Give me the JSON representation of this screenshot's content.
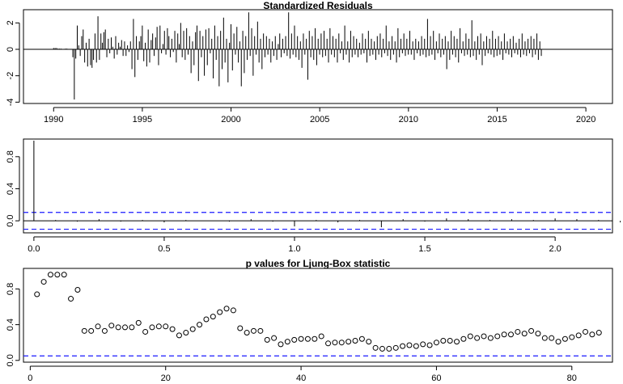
{
  "chart_data": [
    {
      "type": "bar",
      "title": "Standardized Residuals",
      "xlim": [
        1988.3,
        2021.5
      ],
      "ylim": [
        -4.1,
        3.0
      ],
      "xticks": [
        1990,
        1995,
        2000,
        2005,
        2010,
        2015,
        2020
      ],
      "yticks": [
        -4,
        -2,
        0,
        2
      ],
      "x_start": 1990,
      "x_step": 0.0833,
      "values": [
        0.1,
        0.1,
        0.1,
        0.05,
        0.05,
        0.05,
        0.0,
        0.0,
        0.05,
        0.05,
        0.0,
        0.0,
        0.0,
        -0.6,
        -3.8,
        -0.7,
        1.8,
        0.3,
        -0.5,
        1.0,
        1.5,
        -1.0,
        0.5,
        -1.3,
        0.8,
        -1.2,
        -1.4,
        -0.8,
        1.2,
        -1.0,
        2.5,
        -0.8,
        1.2,
        0.5,
        1.3,
        1.5,
        -0.6,
        0.8,
        -0.3,
        0.9,
        0.2,
        -0.7,
        1.0,
        -0.4,
        0.5,
        0.2,
        0.7,
        -0.5,
        0.6,
        -0.5,
        0.3,
        -0.2,
        0.6,
        -1.5,
        2.3,
        -2.1,
        1.0,
        -0.8,
        0.6,
        1.0,
        1.8,
        -0.9,
        0.5,
        -1.3,
        1.5,
        -1.0,
        0.7,
        1.2,
        -0.5,
        0.9,
        1.7,
        -1.2,
        1.8,
        -0.3,
        0.4,
        1.4,
        -0.4,
        1.6,
        1.0,
        -0.6,
        0.8,
        -0.2,
        1.4,
        -1.0,
        1.2,
        0.4,
        2.0,
        -0.6,
        1.4,
        -0.8,
        1.6,
        -0.4,
        1.0,
        -1.8,
        0.6,
        -1.2,
        1.3,
        1.8,
        -2.4,
        1.4,
        -0.6,
        1.0,
        -2.0,
        1.5,
        -1.2,
        1.6,
        -0.3,
        0.8,
        -2.2,
        1.8,
        -0.8,
        1.0,
        -2.8,
        1.4,
        -1.5,
        2.4,
        -1.0,
        0.8,
        -2.5,
        0.5,
        1.9,
        -1.6,
        1.2,
        -0.4,
        1.7,
        -1.0,
        0.6,
        -2.8,
        1.4,
        -1.8,
        1.0,
        -0.8,
        2.8,
        -0.5,
        1.6,
        -2.0,
        1.0,
        -0.4,
        2.1,
        -1.0,
        0.8,
        -1.5,
        1.2,
        -0.6,
        1.0,
        -0.4,
        0.8,
        -1.0,
        0.6,
        -0.5,
        1.0,
        -0.8,
        0.4,
        1.2,
        -0.6,
        0.8,
        -0.3,
        1.0,
        -0.5,
        2.8,
        -0.7,
        1.2,
        -0.4,
        1.8,
        -0.6,
        1.0,
        -0.8,
        0.6,
        -1.4,
        1.2,
        -0.4,
        0.8,
        -2.3,
        1.4,
        -0.6,
        1.0,
        -0.8,
        1.6,
        -1.2,
        0.8,
        -0.4,
        1.2,
        -0.6,
        1.4,
        -0.5,
        0.8,
        -1.0,
        1.6,
        -0.4,
        1.0,
        -0.6,
        0.8,
        -1.0,
        1.2,
        -0.3,
        0.6,
        -0.8,
        1.8,
        -0.4,
        0.6,
        -1.0,
        1.4,
        -0.6,
        1.0,
        -0.4,
        0.8,
        -0.6,
        0.5,
        -0.4,
        1.2,
        -0.3,
        0.8,
        -1.0,
        1.4,
        -0.5,
        0.8,
        -0.4,
        0.6,
        -0.8,
        1.0,
        -0.4,
        1.2,
        -0.6,
        0.8,
        -0.3,
        1.8,
        -0.5,
        0.6,
        -0.8,
        1.0,
        -0.4,
        0.6,
        -1.0,
        1.6,
        -0.6,
        0.8,
        -0.3,
        1.2,
        -0.5,
        0.8,
        -0.4,
        1.4,
        -0.4,
        0.6,
        -0.8,
        0.8,
        -0.3,
        0.6,
        -0.5,
        1.0,
        -0.4,
        0.8,
        -0.6,
        2.3,
        -0.5,
        1.0,
        -0.4,
        1.4,
        -0.8,
        0.6,
        -0.3,
        1.2,
        -0.6,
        0.8,
        -0.4,
        1.0,
        -1.5,
        0.6,
        -0.8,
        1.4,
        -0.4,
        1.0,
        -0.6,
        0.8,
        -1.0,
        1.6,
        -0.3,
        0.6,
        -0.5,
        1.2,
        -0.4,
        0.8,
        -0.6,
        2.2,
        -0.5,
        0.6,
        -0.8,
        1.0,
        -0.4,
        1.2,
        -1.2,
        0.6,
        -0.5,
        1.0,
        -0.3,
        0.8,
        -0.4,
        1.4,
        -0.6,
        0.8,
        -0.5,
        1.0,
        -0.4,
        0.6,
        -0.8,
        1.2,
        -0.3,
        0.6,
        -0.4,
        0.8,
        -0.6,
        1.0,
        -0.3,
        0.5,
        -0.4,
        0.8,
        -0.6,
        1.2,
        -0.4,
        0.6,
        -0.5,
        0.8,
        -0.3,
        1.0,
        -0.6,
        0.8,
        -0.4,
        1.2,
        -0.8,
        0.6,
        -0.5
      ]
    },
    {
      "type": "bar",
      "title": "",
      "xlim": [
        -0.04,
        2.22
      ],
      "ylim": [
        -0.15,
        1.02
      ],
      "xticks": [
        0.0,
        0.5,
        1.0,
        1.5,
        2.0
      ],
      "xticklabels": [
        "0.0",
        "0.5",
        "1.0",
        "1.5",
        "2.0"
      ],
      "yticks": [
        0.0,
        0.4,
        0.8
      ],
      "yticklabels": [
        "0.0",
        "0.4",
        "0.8"
      ],
      "ci": 0.105,
      "lag_step": 0.08333,
      "values": [
        1.0,
        0.01,
        -0.01,
        0.02,
        -0.01,
        0.01,
        -0.02,
        0.01,
        0.0,
        -0.01,
        0.02,
        -0.01,
        -0.07,
        0.01,
        -0.02,
        0.01,
        -0.08,
        0.02,
        -0.01,
        0.03,
        0.02,
        0.01,
        0.02,
        0.01,
        0.03,
        0.02,
        0.01,
        -0.02,
        0.01,
        -0.02,
        0.02,
        0.01,
        0.03,
        0.02,
        -0.07,
        0.01,
        -0.02,
        0.01,
        0.03,
        0.01,
        -0.01,
        0.02,
        -0.01,
        -0.03,
        0.01,
        -0.02,
        0.01,
        0.02,
        0.0,
        -0.01,
        0.01,
        -0.01,
        0.0
      ]
    },
    {
      "type": "scatter",
      "title": "p values for Ljung-Box statistic",
      "xlim": [
        -1,
        86
      ],
      "ylim": [
        -0.02,
        1.03
      ],
      "xticks": [
        0,
        20,
        40,
        60,
        80
      ],
      "yticks": [
        0.0,
        0.4,
        0.8
      ],
      "yticklabels": [
        "0.0",
        "0.4",
        "0.8"
      ],
      "ci": 0.05,
      "x_start": 1,
      "values": [
        0.74,
        0.88,
        0.96,
        0.96,
        0.96,
        0.69,
        0.79,
        0.33,
        0.33,
        0.38,
        0.33,
        0.39,
        0.37,
        0.37,
        0.37,
        0.42,
        0.32,
        0.37,
        0.38,
        0.38,
        0.35,
        0.28,
        0.31,
        0.35,
        0.4,
        0.46,
        0.49,
        0.54,
        0.58,
        0.56,
        0.36,
        0.31,
        0.33,
        0.33,
        0.23,
        0.25,
        0.18,
        0.21,
        0.23,
        0.24,
        0.24,
        0.24,
        0.27,
        0.19,
        0.2,
        0.2,
        0.21,
        0.22,
        0.24,
        0.21,
        0.14,
        0.13,
        0.13,
        0.14,
        0.16,
        0.17,
        0.16,
        0.18,
        0.17,
        0.2,
        0.22,
        0.22,
        0.21,
        0.24,
        0.27,
        0.25,
        0.27,
        0.25,
        0.27,
        0.29,
        0.29,
        0.32,
        0.3,
        0.33,
        0.3,
        0.25,
        0.25,
        0.21,
        0.24,
        0.26,
        0.28,
        0.32,
        0.29,
        0.31
      ]
    }
  ]
}
